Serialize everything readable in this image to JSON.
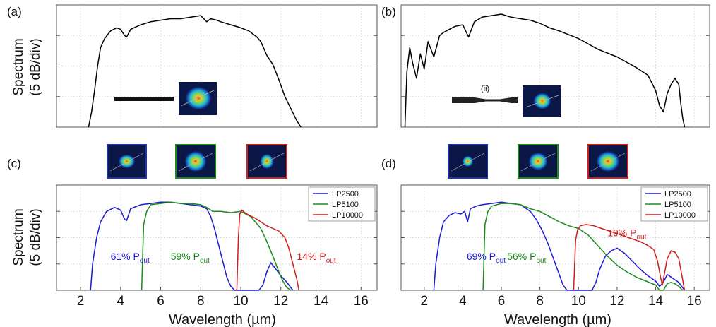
{
  "figure": {
    "panel_labels": [
      "(a)",
      "(b)",
      "(c)",
      "(d)"
    ],
    "ylabel_line1": "Spectrum",
    "ylabel_line2": "(5 dB/div)",
    "xlabel": "Wavelength (µm)",
    "x_ticks": [
      "2",
      "4",
      "6",
      "8",
      "10",
      "12",
      "14",
      "16"
    ],
    "fiber_label_ii": "(ii)"
  },
  "chart_data": [
    {
      "panel": "(a)",
      "type": "line",
      "xlim": [
        0.8,
        16.8
      ],
      "ylim": [
        0,
        4
      ],
      "grid": true,
      "series": [
        {
          "color": "#000000",
          "x": [
            2.4,
            2.55,
            2.7,
            2.85,
            3.0,
            3.2,
            3.5,
            3.8,
            4.0,
            4.2,
            4.3,
            4.5,
            5.0,
            5.5,
            6.0,
            6.5,
            7.0,
            7.5,
            8.0,
            8.3,
            8.5,
            8.8,
            9.0,
            9.5,
            10.0,
            10.4,
            10.8,
            11.0,
            11.3,
            11.6,
            11.9,
            12.2,
            12.5,
            12.8,
            13.0
          ],
          "y": [
            0.0,
            0.5,
            1.2,
            2.0,
            2.6,
            2.9,
            3.15,
            3.25,
            3.2,
            3.0,
            2.95,
            3.2,
            3.35,
            3.45,
            3.5,
            3.55,
            3.55,
            3.6,
            3.65,
            3.45,
            3.55,
            3.5,
            3.45,
            3.35,
            3.25,
            3.15,
            2.95,
            2.8,
            2.35,
            2.05,
            1.55,
            1.0,
            0.6,
            0.2,
            0.0
          ]
        }
      ],
      "insets": [
        {
          "type": "uniform-fiber"
        },
        {
          "type": "mode-image",
          "frame": "none"
        }
      ]
    },
    {
      "panel": "(b)",
      "type": "line",
      "xlim": [
        0.8,
        16.8
      ],
      "ylim": [
        0,
        4
      ],
      "grid": true,
      "series": [
        {
          "color": "#000000",
          "x": [
            1.0,
            1.1,
            1.25,
            1.4,
            1.6,
            1.8,
            2.0,
            2.2,
            2.5,
            2.8,
            3.0,
            3.3,
            3.6,
            4.0,
            4.3,
            4.6,
            5.0,
            5.5,
            6.0,
            6.5,
            7.0,
            7.5,
            8.0,
            8.5,
            9.0,
            10.0,
            11.0,
            12.0,
            13.0,
            13.6,
            14.0,
            14.2,
            14.4,
            14.6,
            14.8,
            15.0,
            15.2,
            15.3,
            15.4,
            15.5
          ],
          "y": [
            0.0,
            1.8,
            2.6,
            2.1,
            1.6,
            2.4,
            1.9,
            2.8,
            2.3,
            3.0,
            3.1,
            3.2,
            3.3,
            3.35,
            2.95,
            3.45,
            3.6,
            3.65,
            3.7,
            3.6,
            3.55,
            3.5,
            3.4,
            3.25,
            3.15,
            2.9,
            2.55,
            2.3,
            1.95,
            1.7,
            1.2,
            0.7,
            0.5,
            1.1,
            1.4,
            1.6,
            1.4,
            0.8,
            0.3,
            0.0
          ]
        }
      ],
      "insets": [
        {
          "type": "tapered-fiber",
          "label": "(ii)"
        },
        {
          "type": "mode-image",
          "frame": "none"
        }
      ]
    },
    {
      "panel": "(c)",
      "type": "line",
      "xlim": [
        0.8,
        16.8
      ],
      "ylim": [
        0,
        4
      ],
      "grid": true,
      "legend": {
        "placement": "top-right",
        "entries": [
          "LP2500",
          "LP5100",
          "LP10000"
        ]
      },
      "series": [
        {
          "name": "LP2500",
          "color": "#1a1ad6",
          "x": [
            2.5,
            2.6,
            2.8,
            3.0,
            3.3,
            3.7,
            4.0,
            4.2,
            4.3,
            4.5,
            5.0,
            5.5,
            6.0,
            6.5,
            7.0,
            7.5,
            8.0,
            8.3,
            8.5,
            8.7,
            8.9,
            9.1,
            9.3,
            9.5,
            9.7,
            9.9,
            10.1,
            10.3,
            10.5,
            10.7,
            10.9,
            11.1,
            11.3,
            11.5,
            11.7,
            12.0,
            12.3,
            12.6
          ],
          "y": [
            0.0,
            1.0,
            2.0,
            2.6,
            3.0,
            3.15,
            3.05,
            2.7,
            2.65,
            3.1,
            3.25,
            3.3,
            3.35,
            3.35,
            3.3,
            3.25,
            3.2,
            3.1,
            2.8,
            2.3,
            1.7,
            1.1,
            0.5,
            0.15,
            0.0,
            0.0,
            0.0,
            0.0,
            0.0,
            0.0,
            0.0,
            0.2,
            0.7,
            1.05,
            0.85,
            0.55,
            0.3,
            0.0
          ]
        },
        {
          "name": "LP5100",
          "color": "#1b8a1b",
          "x": [
            5.05,
            5.15,
            5.3,
            5.5,
            6.0,
            6.5,
            7.0,
            7.5,
            8.0,
            8.3,
            8.6,
            9.0,
            9.5,
            10.0,
            10.5,
            11.0,
            11.3,
            11.6,
            11.9,
            12.1,
            12.3,
            12.5
          ],
          "y": [
            0.0,
            2.5,
            3.0,
            3.25,
            3.3,
            3.35,
            3.3,
            3.3,
            3.25,
            3.15,
            3.0,
            3.0,
            2.95,
            3.0,
            2.8,
            2.35,
            1.85,
            1.3,
            0.7,
            0.35,
            0.1,
            0.0
          ]
        },
        {
          "name": "LP10000",
          "color": "#cc1f1f",
          "x": [
            9.8,
            9.88,
            9.95,
            10.05,
            10.2,
            10.4,
            10.7,
            11.0,
            11.3,
            11.6,
            11.9,
            12.2,
            12.4,
            12.6,
            12.8,
            12.9
          ],
          "y": [
            0.0,
            2.0,
            2.9,
            3.05,
            2.95,
            2.85,
            2.75,
            2.6,
            2.45,
            2.35,
            2.25,
            2.0,
            1.6,
            1.0,
            0.4,
            0.0
          ]
        }
      ],
      "annotations": [
        {
          "base": "61% P",
          "sub": "out",
          "color": "#1a1ad6"
        },
        {
          "base": "59% P",
          "sub": "out",
          "color": "#1b8a1b"
        },
        {
          "base": "14% P",
          "sub": "out",
          "color": "#cc1f1f"
        }
      ],
      "mode_images": [
        {
          "frame": "#2233aa"
        },
        {
          "frame": "#1b8a1b"
        },
        {
          "frame": "#cc1f1f"
        }
      ]
    },
    {
      "panel": "(d)",
      "type": "line",
      "xlim": [
        0.8,
        16.8
      ],
      "ylim": [
        0,
        4
      ],
      "grid": true,
      "legend": {
        "placement": "top-right",
        "entries": [
          "LP2500",
          "LP5100",
          "LP10000"
        ]
      },
      "series": [
        {
          "name": "LP2500",
          "color": "#1a1ad6",
          "x": [
            2.5,
            2.6,
            2.8,
            3.0,
            3.3,
            3.6,
            3.9,
            4.1,
            4.25,
            4.4,
            4.7,
            5.0,
            5.5,
            6.0,
            6.5,
            7.0,
            7.5,
            7.8,
            8.1,
            8.4,
            8.7,
            9.0,
            9.2,
            9.4,
            9.6,
            10.0,
            10.4,
            10.7,
            10.9,
            11.1,
            11.4,
            11.7,
            12.0,
            12.4,
            12.8,
            13.2,
            13.6,
            14.0,
            14.2,
            14.4,
            14.6,
            14.8,
            15.0,
            15.2,
            15.4,
            15.5
          ],
          "y": [
            0.0,
            1.0,
            2.0,
            2.6,
            2.85,
            2.95,
            2.9,
            3.0,
            2.6,
            3.1,
            3.2,
            3.25,
            3.3,
            3.35,
            3.3,
            3.25,
            3.0,
            2.7,
            2.3,
            1.8,
            1.2,
            0.6,
            0.2,
            0.0,
            0.0,
            0.0,
            0.0,
            0.0,
            0.3,
            0.8,
            1.3,
            1.5,
            1.6,
            1.4,
            1.1,
            0.8,
            0.55,
            0.35,
            0.15,
            0.3,
            0.6,
            0.5,
            0.4,
            0.3,
            0.1,
            0.0
          ]
        },
        {
          "name": "LP5100",
          "color": "#1b8a1b",
          "x": [
            5.05,
            5.15,
            5.3,
            5.5,
            6.0,
            6.5,
            7.0,
            7.5,
            8.0,
            8.5,
            9.0,
            9.5,
            10.0,
            10.5,
            11.0,
            11.5,
            12.0,
            12.5,
            13.0,
            13.5,
            14.0,
            14.2,
            14.4,
            14.6,
            14.8,
            15.0,
            15.2,
            15.4
          ],
          "y": [
            0.0,
            2.5,
            3.0,
            3.2,
            3.3,
            3.3,
            3.25,
            3.1,
            3.0,
            2.8,
            2.6,
            2.45,
            2.35,
            2.1,
            1.7,
            1.3,
            0.95,
            0.7,
            0.5,
            0.35,
            0.2,
            0.0,
            0.0,
            0.25,
            0.3,
            0.25,
            0.15,
            0.0
          ]
        },
        {
          "name": "LP10000",
          "color": "#cc1f1f",
          "x": [
            9.75,
            9.85,
            9.95,
            10.1,
            10.4,
            10.8,
            11.2,
            11.6,
            12.0,
            12.4,
            12.8,
            13.2,
            13.6,
            13.9,
            14.1,
            14.25,
            14.35,
            14.45,
            14.6,
            14.8,
            15.0,
            15.2,
            15.35,
            15.5
          ],
          "y": [
            0.0,
            1.9,
            2.3,
            2.45,
            2.5,
            2.45,
            2.35,
            2.25,
            2.15,
            2.05,
            1.95,
            1.85,
            1.7,
            1.55,
            1.1,
            0.5,
            0.2,
            0.6,
            1.2,
            1.5,
            1.45,
            1.2,
            0.6,
            0.0
          ]
        }
      ],
      "annotations": [
        {
          "base": "69% P",
          "sub": "out",
          "color": "#1a1ad6"
        },
        {
          "base": "56% P",
          "sub": "out",
          "color": "#1b8a1b"
        },
        {
          "base": "19% P",
          "sub": "out",
          "color": "#cc1f1f"
        }
      ],
      "mode_images": [
        {
          "frame": "#2233aa"
        },
        {
          "frame": "#1b8a1b"
        },
        {
          "frame": "#cc1f1f"
        }
      ]
    }
  ]
}
